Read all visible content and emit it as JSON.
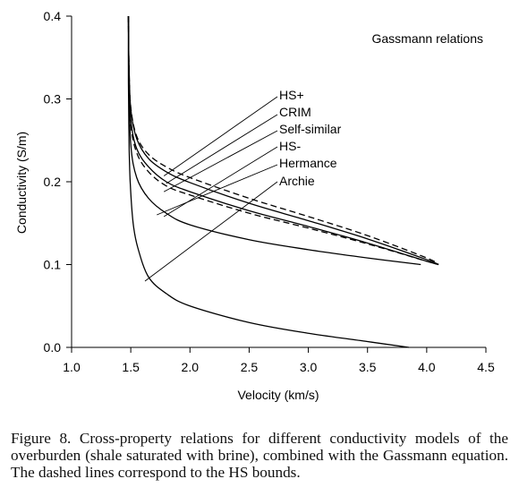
{
  "chart_data": {
    "type": "line",
    "title": "Gassmann relations",
    "xlabel": "Velocity (km/s)",
    "ylabel": "Conductivity (S/m)",
    "xlim": [
      1.0,
      4.5
    ],
    "ylim": [
      0.0,
      0.4
    ],
    "xticks": [
      "1.0",
      "1.5",
      "2.0",
      "2.5",
      "3.0",
      "3.5",
      "4.0",
      "4.5"
    ],
    "yticks": [
      "0.0",
      "0.1",
      "0.2",
      "0.3",
      "0.4"
    ],
    "grid": false,
    "series": [
      {
        "name": "HS+",
        "dashed": true,
        "points": [
          [
            1.48,
            0.4
          ],
          [
            1.485,
            0.34
          ],
          [
            1.5,
            0.29
          ],
          [
            1.55,
            0.255
          ],
          [
            1.65,
            0.233
          ],
          [
            1.8,
            0.218
          ],
          [
            2.0,
            0.205
          ],
          [
            2.5,
            0.18
          ],
          [
            3.0,
            0.158
          ],
          [
            3.5,
            0.135
          ],
          [
            4.0,
            0.108
          ],
          [
            4.1,
            0.1
          ]
        ]
      },
      {
        "name": "CRIM",
        "dashed": false,
        "points": [
          [
            1.48,
            0.4
          ],
          [
            1.485,
            0.34
          ],
          [
            1.5,
            0.288
          ],
          [
            1.55,
            0.252
          ],
          [
            1.65,
            0.228
          ],
          [
            1.8,
            0.212
          ],
          [
            2.0,
            0.199
          ],
          [
            2.5,
            0.174
          ],
          [
            3.0,
            0.153
          ],
          [
            3.5,
            0.131
          ],
          [
            4.0,
            0.106
          ],
          [
            4.1,
            0.1
          ]
        ]
      },
      {
        "name": "Self-similar",
        "dashed": false,
        "points": [
          [
            1.48,
            0.4
          ],
          [
            1.485,
            0.335
          ],
          [
            1.5,
            0.275
          ],
          [
            1.55,
            0.24
          ],
          [
            1.65,
            0.218
          ],
          [
            1.8,
            0.2
          ],
          [
            2.0,
            0.188
          ],
          [
            2.5,
            0.165
          ],
          [
            3.0,
            0.146
          ],
          [
            3.5,
            0.126
          ],
          [
            4.0,
            0.104
          ],
          [
            4.1,
            0.1
          ]
        ]
      },
      {
        "name": "HS-",
        "dashed": true,
        "points": [
          [
            1.48,
            0.4
          ],
          [
            1.485,
            0.33
          ],
          [
            1.5,
            0.27
          ],
          [
            1.55,
            0.235
          ],
          [
            1.65,
            0.212
          ],
          [
            1.8,
            0.195
          ],
          [
            2.0,
            0.184
          ],
          [
            2.5,
            0.162
          ],
          [
            3.0,
            0.144
          ],
          [
            3.5,
            0.125
          ],
          [
            4.0,
            0.104
          ],
          [
            4.1,
            0.1
          ]
        ]
      },
      {
        "name": "Hermance",
        "dashed": false,
        "points": [
          [
            1.48,
            0.4
          ],
          [
            1.485,
            0.32
          ],
          [
            1.5,
            0.245
          ],
          [
            1.55,
            0.205
          ],
          [
            1.65,
            0.18
          ],
          [
            1.8,
            0.162
          ],
          [
            2.0,
            0.148
          ],
          [
            2.5,
            0.13
          ],
          [
            3.0,
            0.118
          ],
          [
            3.5,
            0.108
          ],
          [
            3.95,
            0.1
          ]
        ]
      },
      {
        "name": "Archie",
        "dashed": false,
        "points": [
          [
            1.48,
            0.4
          ],
          [
            1.48,
            0.32
          ],
          [
            1.485,
            0.25
          ],
          [
            1.495,
            0.2
          ],
          [
            1.52,
            0.15
          ],
          [
            1.56,
            0.12
          ],
          [
            1.65,
            0.085
          ],
          [
            1.8,
            0.065
          ],
          [
            2.0,
            0.05
          ],
          [
            2.5,
            0.03
          ],
          [
            3.0,
            0.017
          ],
          [
            3.5,
            0.007
          ],
          [
            3.85,
            0.0
          ]
        ]
      }
    ],
    "annotations": [
      "HS+",
      "CRIM",
      "Self-similar",
      "HS-",
      "Hermance",
      "Archie"
    ]
  },
  "caption": "Figure 8. Cross-property relations for different conductivity models of the overburden (shale saturated with brine), combined with the Gassmann equation. The dashed lines correspond to the HS bounds."
}
